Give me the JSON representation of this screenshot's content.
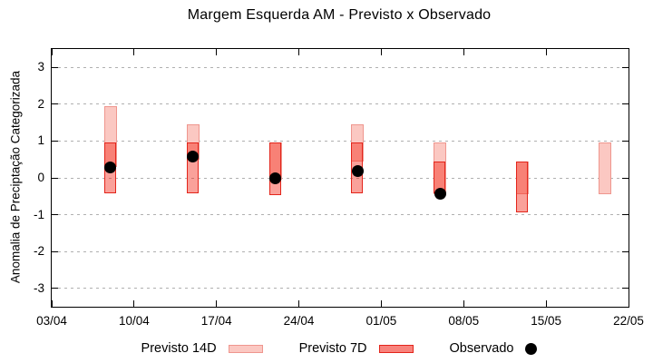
{
  "chart_data": {
    "type": "bar",
    "subtype": "overlapping-range-bars-with-points",
    "title": "Margem Esquerda AM - Previsto x Observado",
    "ylabel": "Anomalia de Preciptação Categorizada",
    "ylim": [
      -3.5,
      3.5
    ],
    "yticks": [
      3,
      2,
      1,
      0,
      -1,
      -2,
      -3
    ],
    "grid": "horizontal-dashed",
    "xlim_days": [
      0,
      49
    ],
    "xticks": [
      {
        "day": 0,
        "label": "03/04"
      },
      {
        "day": 7,
        "label": "10/04"
      },
      {
        "day": 14,
        "label": "17/04"
      },
      {
        "day": 21,
        "label": "24/04"
      },
      {
        "day": 28,
        "label": "01/05"
      },
      {
        "day": 35,
        "label": "08/05"
      },
      {
        "day": 42,
        "label": "15/05"
      },
      {
        "day": 49,
        "label": "22/05"
      }
    ],
    "series": [
      {
        "date": "08/04",
        "day": 5,
        "previsto14d": [
          0.3,
          1.95
        ],
        "previsto7d": [
          -0.45,
          0.95
        ],
        "observado": 0.28
      },
      {
        "date": "15/04",
        "day": 12,
        "previsto14d": [
          0.5,
          1.45
        ],
        "previsto7d": [
          -0.45,
          0.95
        ],
        "observado": 0.58
      },
      {
        "date": "22/04",
        "day": 19,
        "previsto14d": [
          -0.05,
          0.95
        ],
        "previsto7d": [
          -0.5,
          0.95
        ],
        "observado": -0.02
      },
      {
        "date": "29/04",
        "day": 26,
        "previsto14d": [
          0.45,
          1.45
        ],
        "previsto7d": [
          -0.45,
          0.95
        ],
        "observado": 0.18
      },
      {
        "date": "06/05",
        "day": 33,
        "previsto14d": [
          -0.45,
          0.95
        ],
        "previsto7d": [
          -0.45,
          0.45
        ],
        "observado": -0.42
      },
      {
        "date": "13/05",
        "day": 40,
        "previsto14d": [
          -0.45,
          0.45
        ],
        "previsto7d": [
          -0.95,
          0.45
        ],
        "observado": null
      },
      {
        "date": "20/05",
        "day": 47,
        "previsto14d": [
          -0.45,
          0.95
        ],
        "previsto7d": null,
        "observado": null
      }
    ],
    "legend": {
      "previsto14d": "Previsto 14D",
      "previsto7d": "Previsto 7D",
      "observado": "Observado"
    },
    "legend_position": "bottom-center",
    "colors": {
      "previsto14d_fill": "#fbc8c2",
      "previsto14d_border": "#ef968e",
      "previsto7d_fill_rgba": "rgba(243,30,15,0.42)",
      "previsto7d_legend_fill": "#f8837c",
      "previsto7d_border": "#e3251b",
      "observado": "#000000",
      "gridline": "#b0b0b0"
    }
  }
}
